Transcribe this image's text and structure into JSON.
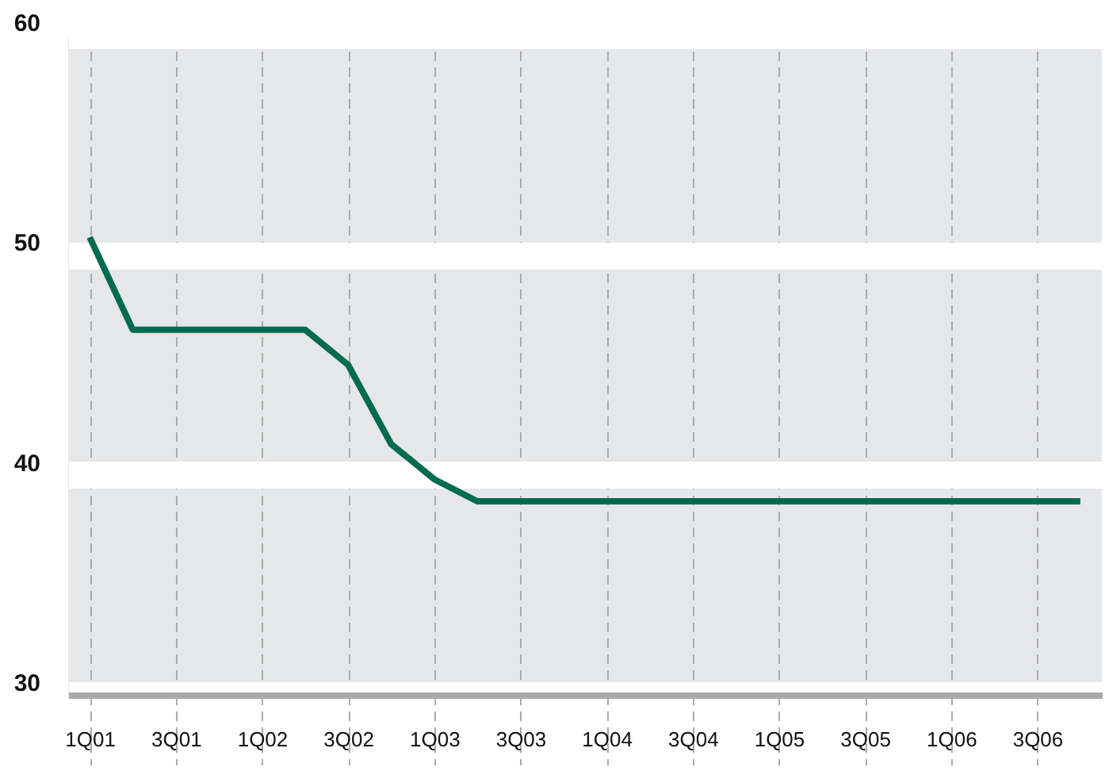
{
  "chart_data": {
    "type": "line",
    "categories": [
      "1Q01",
      null,
      "3Q01",
      null,
      "1Q02",
      null,
      "3Q02",
      null,
      "1Q03",
      null,
      "3Q03",
      null,
      "1Q04",
      null,
      "3Q04",
      null,
      "1Q05",
      null,
      "3Q05",
      null,
      "1Q06",
      null,
      "3Q06",
      null
    ],
    "series": [
      {
        "color": "#006b4e",
        "values": [
          50.8,
          46.6,
          46.6,
          46.6,
          46.6,
          46.6,
          45.0,
          41.4,
          39.8,
          38.8,
          38.8,
          38.8,
          38.8,
          38.8,
          38.8,
          38.8,
          38.8,
          38.8,
          38.8,
          38.8,
          38.8,
          38.8,
          38.8,
          38.8
        ]
      }
    ],
    "ylim": [
      30,
      60
    ],
    "yticks": [
      30,
      40,
      50,
      60
    ],
    "grid": true,
    "marker": "none",
    "line_style": "solid"
  }
}
